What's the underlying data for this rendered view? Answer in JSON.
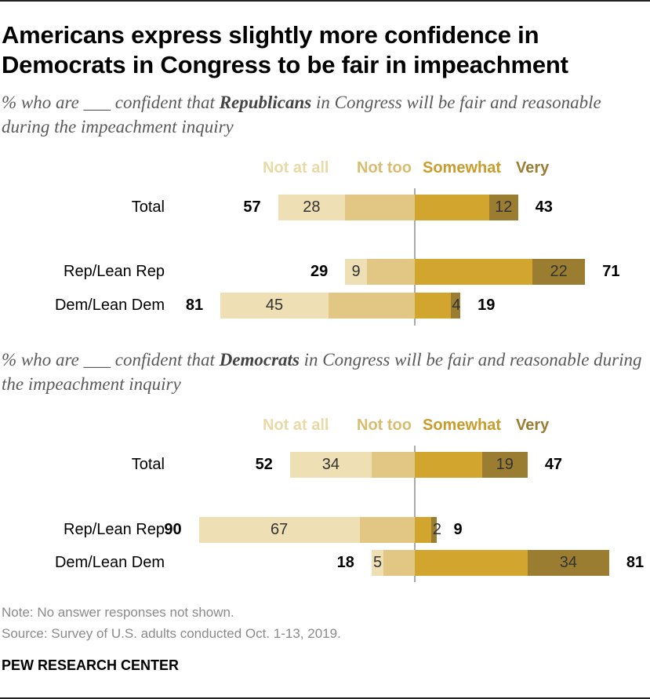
{
  "title_line1": "Americans express slightly more confidence in",
  "title_line2": "Democrats in Congress to be fair in impeachment",
  "legend": {
    "not_at_all": "Not at all",
    "not_too": "Not too",
    "somewhat": "Somewhat",
    "very": "Very"
  },
  "colors": {
    "not_at_all": "#efdfb4",
    "not_too": "#e1c783",
    "somewhat": "#d2a52f",
    "very": "#9b7d31",
    "legend_not_at_all": "#e9d9a6",
    "legend_not_too": "#d8bd71",
    "legend_somewhat": "#c99c2b",
    "legend_very": "#9b7d31"
  },
  "note": "Note: No answer responses not shown.",
  "source": "Source: Survey of U.S. adults conducted Oct. 1-13, 2019.",
  "credit": "PEW RESEARCH CENTER",
  "chart_data": [
    {
      "type": "bar",
      "subtitle_pre": "% who are ___ confident that ",
      "subtitle_bold": "Republicans",
      "subtitle_post": " in Congress will be fair and reasonable during the impeachment inquiry",
      "categories": [
        "Total",
        "Rep/Lean Rep",
        "Dem/Lean Dem"
      ],
      "series": [
        {
          "name": "Not at all",
          "values": [
            28,
            9,
            45
          ]
        },
        {
          "name": "Not too",
          "values": [
            29,
            20,
            36
          ]
        },
        {
          "name": "Somewhat",
          "values": [
            31,
            49,
            15
          ]
        },
        {
          "name": "Very",
          "values": [
            12,
            22,
            4
          ]
        }
      ],
      "value_labels": [
        {
          "not_at_all": "28",
          "very": "12"
        },
        {
          "not_at_all": "9",
          "very": "22"
        },
        {
          "not_at_all": "45",
          "very": "4"
        }
      ],
      "net_not_confident": [
        "57",
        "29",
        "81"
      ],
      "net_confident": [
        "43",
        "71",
        "19"
      ]
    },
    {
      "type": "bar",
      "subtitle_pre": "% who are ___ confident that ",
      "subtitle_bold": "Democrats",
      "subtitle_post": " in Congress will be fair and reasonable during the impeachment inquiry",
      "categories": [
        "Total",
        "Rep/Lean Rep",
        "Dem/Lean Dem"
      ],
      "series": [
        {
          "name": "Not at all",
          "values": [
            34,
            67,
            5
          ]
        },
        {
          "name": "Not too",
          "values": [
            18,
            23,
            13
          ]
        },
        {
          "name": "Somewhat",
          "values": [
            28,
            7,
            47
          ]
        },
        {
          "name": "Very",
          "values": [
            19,
            2,
            34
          ]
        }
      ],
      "value_labels": [
        {
          "not_at_all": "34",
          "very": "19"
        },
        {
          "not_at_all": "67",
          "very": "2"
        },
        {
          "not_at_all": "5",
          "very": "34"
        }
      ],
      "net_not_confident": [
        "52",
        "90",
        "18"
      ],
      "net_confident": [
        "47",
        "9",
        "81"
      ]
    }
  ]
}
